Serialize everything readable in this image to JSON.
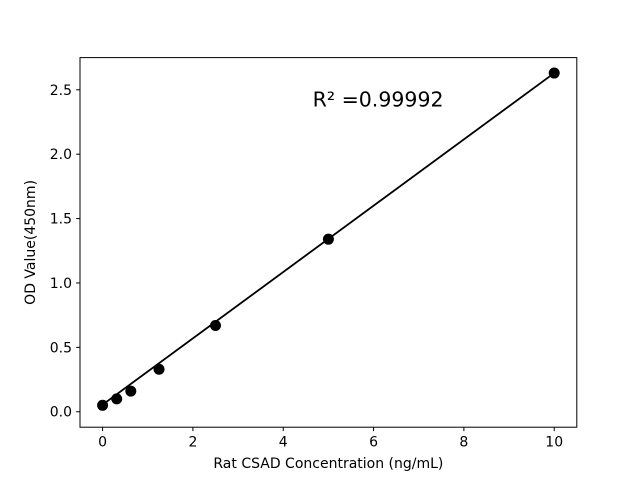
{
  "figure": {
    "background": "#ffffff"
  },
  "chart_data": {
    "type": "scatter",
    "title": "",
    "xlabel": "Rat CSAD Concentration (ng/mL)",
    "ylabel": "OD Value(450nm)",
    "x": [
      0,
      0.313,
      0.625,
      1.25,
      2.5,
      5,
      10
    ],
    "y": [
      0.05,
      0.1,
      0.16,
      0.33,
      0.67,
      1.34,
      2.63
    ],
    "fit_line": {
      "x": [
        0,
        10
      ],
      "y": [
        0.055,
        2.63
      ]
    },
    "annotation": {
      "text": "R² =0.99992",
      "x": 6.1,
      "y": 2.37
    },
    "xlim": [
      -0.5,
      10.5
    ],
    "ylim": [
      -0.12,
      2.75
    ],
    "xticks": {
      "values": [
        0,
        2,
        4,
        6,
        8,
        10
      ],
      "labels": [
        "0",
        "2",
        "4",
        "6",
        "8",
        "10"
      ]
    },
    "yticks": {
      "values": [
        0,
        0.5,
        1.0,
        1.5,
        2.0,
        2.5
      ],
      "labels": [
        "0.0",
        "0.5",
        "1.0",
        "1.5",
        "2.0",
        "2.5"
      ]
    },
    "grid": false,
    "legend": null,
    "marker_color": "#000000",
    "line_color": "#000000",
    "axis_color": "#000000"
  }
}
